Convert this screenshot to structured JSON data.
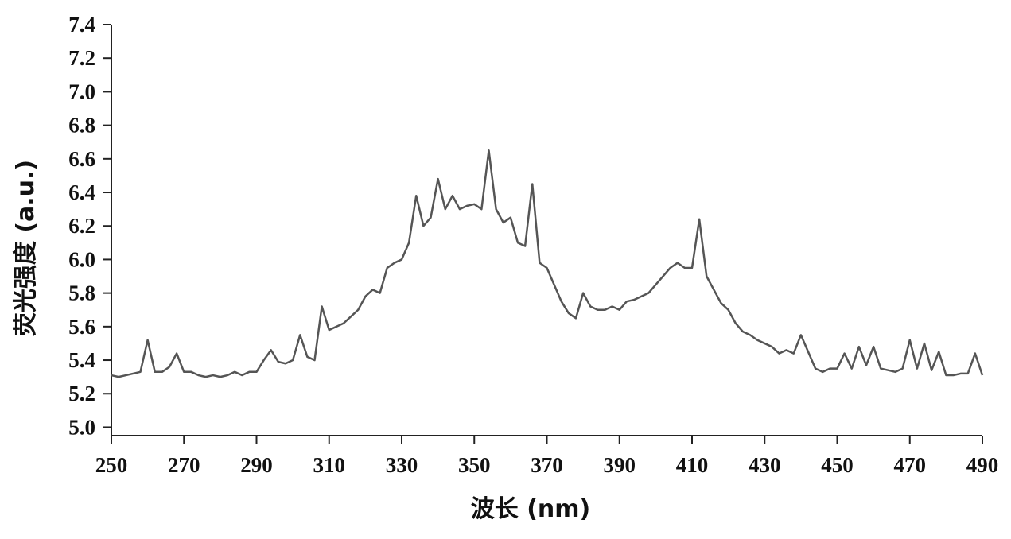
{
  "chart_data": {
    "type": "line",
    "xlabel": "波长 (nm)",
    "ylabel": "荧光强度 (a.u.)",
    "x": [
      250,
      252,
      254,
      256,
      258,
      260,
      262,
      264,
      266,
      268,
      270,
      272,
      274,
      276,
      278,
      280,
      282,
      284,
      286,
      288,
      290,
      292,
      294,
      296,
      298,
      300,
      302,
      304,
      306,
      308,
      310,
      312,
      314,
      316,
      318,
      320,
      322,
      324,
      326,
      328,
      330,
      332,
      334,
      336,
      338,
      340,
      342,
      344,
      346,
      348,
      350,
      352,
      354,
      356,
      358,
      360,
      362,
      364,
      366,
      368,
      370,
      372,
      374,
      376,
      378,
      380,
      382,
      384,
      386,
      388,
      390,
      392,
      394,
      396,
      398,
      400,
      402,
      404,
      406,
      408,
      410,
      412,
      414,
      416,
      418,
      420,
      422,
      424,
      426,
      428,
      430,
      432,
      434,
      436,
      438,
      440,
      442,
      444,
      446,
      448,
      450,
      452,
      454,
      456,
      458,
      460,
      462,
      464,
      466,
      468,
      470,
      472,
      474,
      476,
      478,
      480,
      482,
      484,
      486,
      488,
      490
    ],
    "series": [
      {
        "color": "#555555",
        "values": [
          5.31,
          5.3,
          5.31,
          5.32,
          5.33,
          5.52,
          5.33,
          5.33,
          5.36,
          5.44,
          5.33,
          5.33,
          5.31,
          5.3,
          5.31,
          5.3,
          5.31,
          5.33,
          5.31,
          5.33,
          5.33,
          5.4,
          5.46,
          5.39,
          5.38,
          5.4,
          5.55,
          5.42,
          5.4,
          5.72,
          5.58,
          5.6,
          5.62,
          5.66,
          5.7,
          5.78,
          5.82,
          5.8,
          5.95,
          5.98,
          6.0,
          6.1,
          6.38,
          6.2,
          6.25,
          6.48,
          6.3,
          6.38,
          6.3,
          6.32,
          6.33,
          6.3,
          6.65,
          6.3,
          6.22,
          6.25,
          6.1,
          6.08,
          6.45,
          5.98,
          5.95,
          5.85,
          5.75,
          5.68,
          5.65,
          5.8,
          5.72,
          5.7,
          5.7,
          5.72,
          5.7,
          5.75,
          5.76,
          5.78,
          5.8,
          5.85,
          5.9,
          5.95,
          5.98,
          5.95,
          5.95,
          6.24,
          5.9,
          5.82,
          5.74,
          5.7,
          5.62,
          5.57,
          5.55,
          5.52,
          5.5,
          5.48,
          5.44,
          5.46,
          5.44,
          5.55,
          5.45,
          5.35,
          5.33,
          5.35,
          5.35,
          5.44,
          5.35,
          5.48,
          5.37,
          5.48,
          5.35,
          5.34,
          5.33,
          5.35,
          5.52,
          5.35,
          5.5,
          5.34,
          5.45,
          5.31,
          5.31,
          5.32,
          5.32,
          5.44,
          5.31
        ]
      }
    ],
    "xlim": [
      250,
      490
    ],
    "xticks": [
      250,
      270,
      290,
      310,
      330,
      350,
      370,
      390,
      410,
      430,
      450,
      470,
      490
    ],
    "ylim": [
      4.95,
      7.4
    ],
    "yticks": [
      {
        "value": 5,
        "label": "5.0"
      },
      {
        "value": 5.2,
        "label": "5.2"
      },
      {
        "value": 5.4,
        "label": "5.4"
      },
      {
        "value": 5.6,
        "label": "5.6"
      },
      {
        "value": 5.8,
        "label": "5.8"
      },
      {
        "value": 6,
        "label": "6.0"
      },
      {
        "value": 6.2,
        "label": "6.2"
      },
      {
        "value": 6.4,
        "label": "6.4"
      },
      {
        "value": 6.6,
        "label": "6.6"
      },
      {
        "value": 6.8,
        "label": "6.8"
      },
      {
        "value": 7,
        "label": "7.0"
      },
      {
        "value": 7.2,
        "label": "7.2"
      },
      {
        "value": 7.4,
        "label": "7.4"
      }
    ]
  }
}
